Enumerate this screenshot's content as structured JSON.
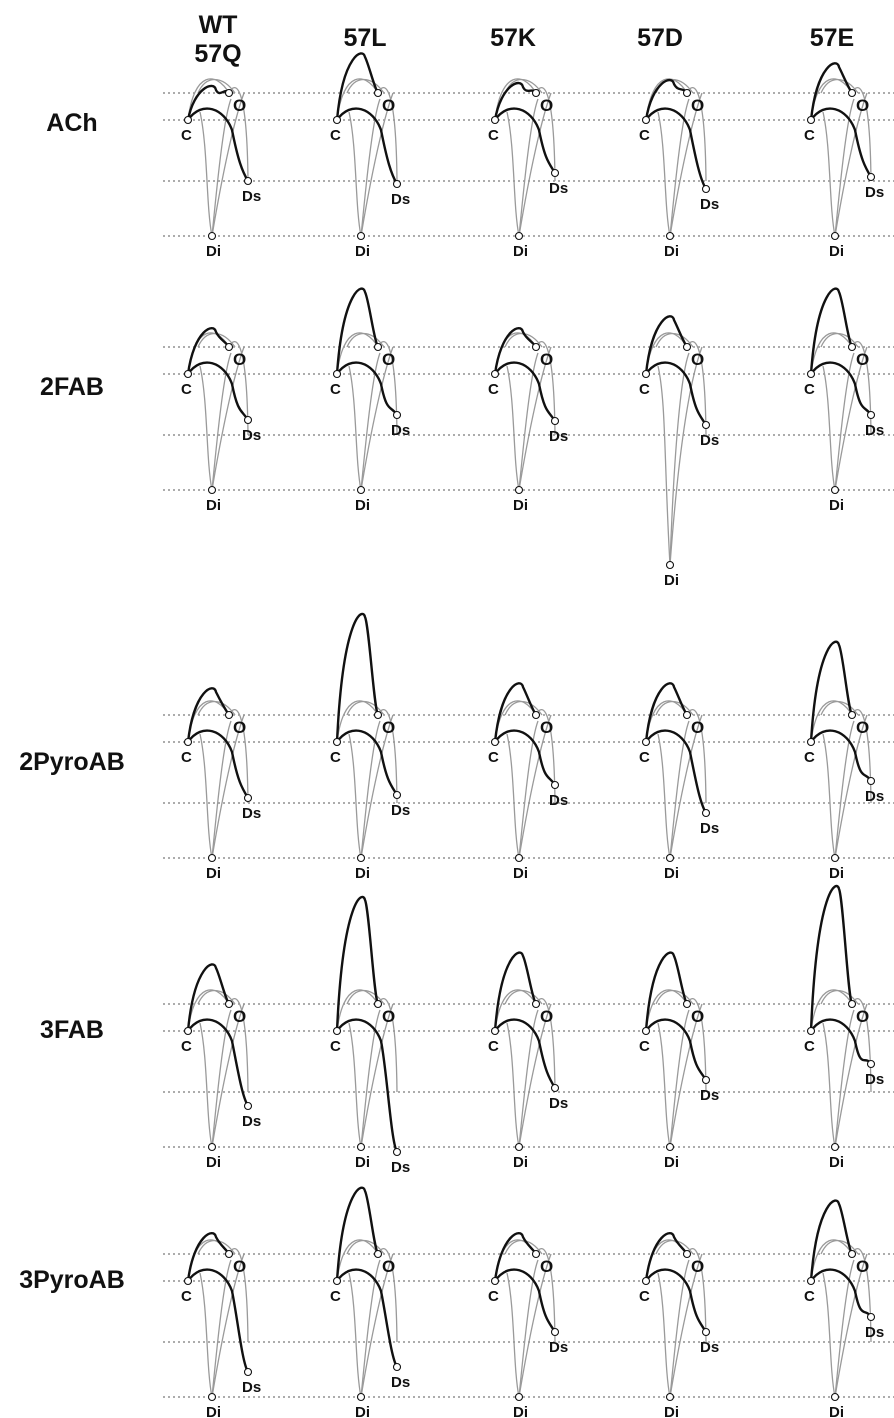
{
  "columns": [
    {
      "id": "wt",
      "lines": [
        "WT",
        "57Q"
      ]
    },
    {
      "id": "57L",
      "lines": [
        "57L"
      ]
    },
    {
      "id": "57K",
      "lines": [
        "57K"
      ]
    },
    {
      "id": "57D",
      "lines": [
        "57D"
      ]
    },
    {
      "id": "57E",
      "lines": [
        "57E"
      ]
    }
  ],
  "rows": [
    {
      "id": "ach",
      "label": "ACh"
    },
    {
      "id": "2fab",
      "label": "2FAB"
    },
    {
      "id": "2pyroab",
      "label": "2PyroAB"
    },
    {
      "id": "3fab",
      "label": "3FAB"
    },
    {
      "id": "3pyroab",
      "label": "3PyroAB"
    }
  ],
  "state_labels": {
    "closed": "C",
    "open": "O",
    "desensitized": "Ds",
    "diliganded": "Di"
  }
}
